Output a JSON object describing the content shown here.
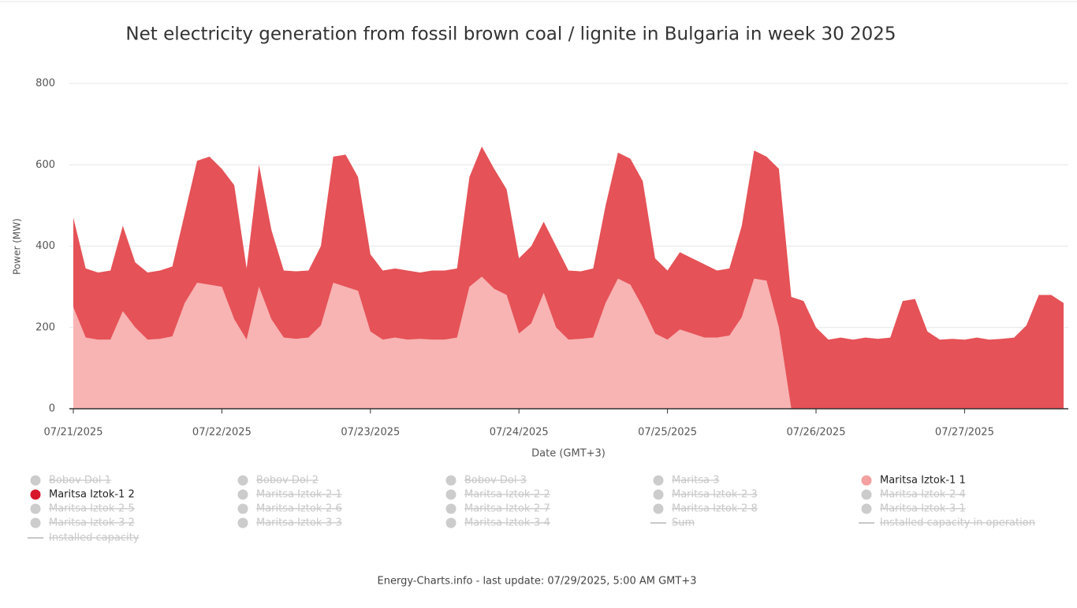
{
  "chart_data": {
    "type": "stacked_area",
    "title": "Net electricity generation from fossil brown coal / lignite in Bulgaria in week 30 2025",
    "x_label": "Date (GMT+3)",
    "y_label": "Power (MW)",
    "footer": "Energy-Charts.info - last update: 07/29/2025, 5:00 AM GMT+3",
    "x": [
      0,
      2,
      4,
      6,
      8,
      10,
      12,
      14,
      16,
      18,
      20,
      22,
      24,
      26,
      28,
      30,
      32,
      34,
      36,
      38,
      40,
      42,
      44,
      46,
      48,
      50,
      52,
      54,
      56,
      58,
      60,
      62,
      64,
      66,
      68,
      70,
      72,
      74,
      76,
      78,
      80,
      82,
      84,
      86,
      88,
      90,
      92,
      94,
      96,
      98,
      100,
      102,
      104,
      106,
      108,
      110,
      112,
      114,
      116,
      118,
      120,
      122,
      124,
      126,
      128,
      130,
      132,
      134,
      136,
      138,
      140,
      142,
      144,
      146,
      148,
      150,
      152,
      154,
      156,
      158,
      160
    ],
    "xlim": [
      0,
      160
    ],
    "xticks": [
      {
        "value": 0,
        "label": "07/21/2025"
      },
      {
        "value": 24,
        "label": "07/22/2025"
      },
      {
        "value": 48,
        "label": "07/23/2025"
      },
      {
        "value": 72,
        "label": "07/24/2025"
      },
      {
        "value": 96,
        "label": "07/25/2025"
      },
      {
        "value": 120,
        "label": "07/26/2025"
      },
      {
        "value": 144,
        "label": "07/27/2025"
      }
    ],
    "ylim": [
      0,
      800
    ],
    "yticks": [
      0,
      200,
      400,
      600,
      800
    ],
    "grid": true,
    "series": [
      {
        "name": "Maritsa Iztok-1 1",
        "color": "#f8b3b3",
        "values": [
          250,
          175,
          170,
          170,
          240,
          200,
          170,
          172,
          178,
          260,
          310,
          305,
          300,
          220,
          170,
          300,
          220,
          175,
          172,
          175,
          205,
          310,
          300,
          290,
          190,
          170,
          175,
          170,
          172,
          170,
          170,
          175,
          300,
          325,
          295,
          280,
          185,
          210,
          285,
          200,
          170,
          172,
          175,
          260,
          320,
          305,
          250,
          185,
          170,
          195,
          185,
          175,
          175,
          180,
          225,
          320,
          315,
          200,
          0,
          0,
          0,
          0,
          0,
          0,
          0,
          0,
          0,
          0,
          0,
          0,
          0,
          0,
          0,
          0,
          0,
          0,
          0,
          0,
          0,
          0,
          0
        ]
      },
      {
        "name": "Maritsa Iztok-1 2",
        "color": "#e55257",
        "legend_color": "#d7182a",
        "values": [
          220,
          170,
          165,
          170,
          210,
          160,
          165,
          168,
          172,
          220,
          300,
          315,
          290,
          330,
          175,
          300,
          220,
          165,
          166,
          165,
          195,
          310,
          325,
          280,
          190,
          170,
          170,
          170,
          163,
          170,
          170,
          170,
          270,
          320,
          295,
          260,
          185,
          190,
          175,
          200,
          170,
          166,
          170,
          240,
          310,
          310,
          310,
          185,
          170,
          190,
          185,
          180,
          165,
          165,
          225,
          315,
          305,
          390,
          275,
          265,
          200,
          170,
          175,
          170,
          175,
          172,
          175,
          265,
          270,
          190,
          170,
          172,
          170,
          175,
          170,
          172,
          175,
          205,
          280,
          280,
          260
        ]
      }
    ],
    "series_legend_color": "#f4a0a0",
    "hidden_series": [
      {
        "name": "Bobov Dol 1",
        "symbol": "dot"
      },
      {
        "name": "Bobov Dol 2",
        "symbol": "dot"
      },
      {
        "name": "Bobov Dol 3",
        "symbol": "dot"
      },
      {
        "name": "Maritsa 3",
        "symbol": "dot"
      },
      {
        "name": "Maritsa Iztok-2 1",
        "symbol": "dot"
      },
      {
        "name": "Maritsa Iztok-2 2",
        "symbol": "dot"
      },
      {
        "name": "Maritsa Iztok-2 3",
        "symbol": "dot"
      },
      {
        "name": "Maritsa Iztok-2 4",
        "symbol": "dot"
      },
      {
        "name": "Maritsa Iztok-2 5",
        "symbol": "dot"
      },
      {
        "name": "Maritsa Iztok-2 6",
        "symbol": "dot"
      },
      {
        "name": "Maritsa Iztok-2 7",
        "symbol": "dot"
      },
      {
        "name": "Maritsa Iztok-2 8",
        "symbol": "dot"
      },
      {
        "name": "Maritsa Iztok-3 1",
        "symbol": "dot"
      },
      {
        "name": "Maritsa Iztok-3 2",
        "symbol": "dot"
      },
      {
        "name": "Maritsa Iztok-3 3",
        "symbol": "dot"
      },
      {
        "name": "Maritsa Iztok-3 4",
        "symbol": "dot"
      },
      {
        "name": "Sum",
        "symbol": "line"
      },
      {
        "name": "Installed capacity in operation",
        "symbol": "line"
      },
      {
        "name": "Installed capacity",
        "symbol": "line"
      }
    ]
  }
}
